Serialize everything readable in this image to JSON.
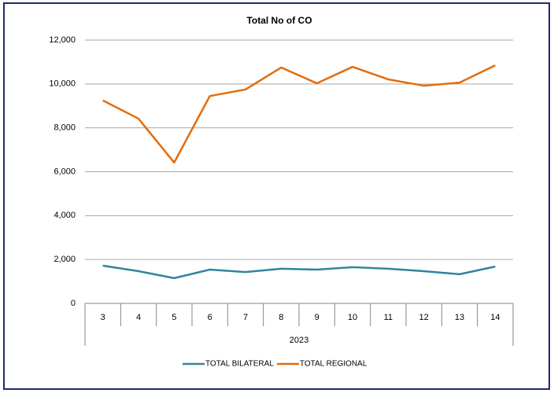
{
  "chart_data": {
    "type": "line",
    "title": "Total No of CO",
    "categories": [
      "3",
      "4",
      "5",
      "6",
      "7",
      "8",
      "9",
      "10",
      "11",
      "12",
      "13",
      "14"
    ],
    "x_group_label": "2023",
    "series": [
      {
        "name": "TOTAL BILATERAL",
        "color": "#31849b",
        "values": [
          1720,
          1470,
          1150,
          1540,
          1430,
          1580,
          1540,
          1650,
          1580,
          1470,
          1330,
          1680
        ]
      },
      {
        "name": "TOTAL REGIONAL",
        "color": "#e46c0a",
        "values": [
          9250,
          8420,
          6420,
          9450,
          9750,
          10750,
          10030,
          10780,
          10210,
          9920,
          10060,
          10850
        ]
      }
    ],
    "ylim": [
      0,
      12000
    ],
    "yticks": [
      0,
      {
        "value": 2000,
        "label": "2,000"
      },
      {
        "value": 4000,
        "label": "4,000"
      },
      {
        "value": 6000,
        "label": "6,000"
      },
      {
        "value": 8000,
        "label": "8,000"
      },
      {
        "value": 10000,
        "label": "10,000"
      },
      {
        "value": 12000,
        "label": "12,000"
      }
    ],
    "grid": true,
    "legend": "bottom"
  }
}
